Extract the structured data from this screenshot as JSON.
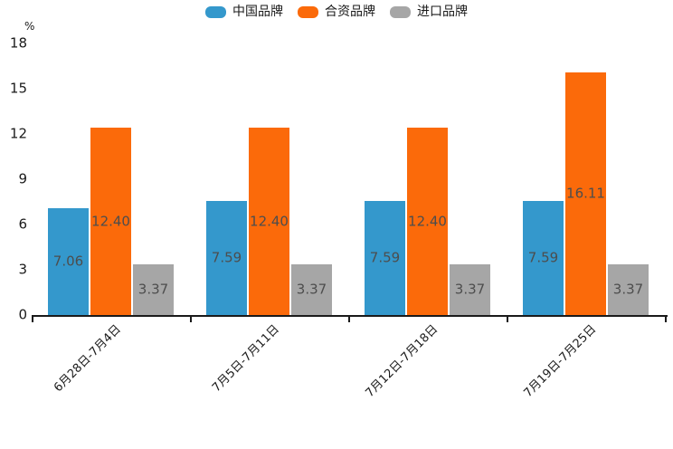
{
  "chart_data": {
    "type": "bar",
    "title": "",
    "xlabel": "",
    "ylabel": "%",
    "ylim": [
      0,
      18
    ],
    "yticks": [
      0,
      3,
      6,
      9,
      12,
      15,
      18
    ],
    "grid": false,
    "legend_position": "top-center",
    "categories": [
      "6月28日-7月4日",
      "7月5日-7月11日",
      "7月12日-7月18日",
      "7月19日-7月25日"
    ],
    "series": [
      {
        "id": "china-brand",
        "name": "中国品牌",
        "color": "#3498CC",
        "values": [
          7.06,
          7.59,
          7.59,
          7.59
        ],
        "labels": [
          "7.06",
          "7.59",
          "7.59",
          "7.59"
        ]
      },
      {
        "id": "joint-venture-brand",
        "name": "合资品牌",
        "color": "#FB6A0A",
        "values": [
          12.4,
          12.4,
          12.4,
          16.11
        ],
        "labels": [
          "12.40",
          "12.40",
          "12.40",
          "16.11"
        ]
      },
      {
        "id": "imported-brand",
        "name": "进口品牌",
        "color": "#A6A6A6",
        "values": [
          3.37,
          3.37,
          3.37,
          3.37
        ],
        "labels": [
          "3.37",
          "3.37",
          "3.37",
          "3.37"
        ]
      }
    ]
  },
  "styles": {
    "background": "#ffffff",
    "axis_color": "#1a1a1a",
    "tick_label_color": "#1a1a1a",
    "bar_label_color": "#4d4d4d"
  }
}
